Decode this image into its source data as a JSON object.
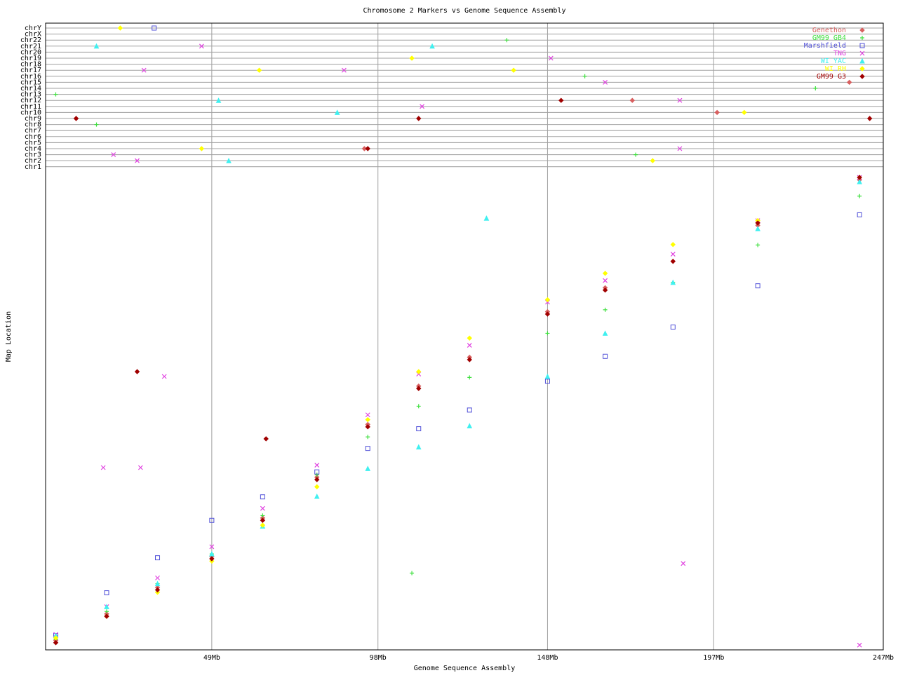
{
  "chart_data": {
    "type": "scatter",
    "title": "Chromosome 2 Markers vs Genome Sequence Assembly",
    "x_label": "Genome Sequence Assembly",
    "y_label": "Map Location",
    "xlim": [
      0,
      247
    ],
    "xticks": [
      {
        "value": 49,
        "label": "49Mb"
      },
      {
        "value": 98,
        "label": "98Mb"
      },
      {
        "value": 148,
        "label": "148Mb"
      },
      {
        "value": 197,
        "label": "197Mb"
      },
      {
        "value": 247,
        "label": "247Mb"
      }
    ],
    "ylim": [
      0,
      100
    ],
    "grid": true,
    "legend": "upper right",
    "chr_rows": [
      "chrY",
      "chrX",
      "chr22",
      "chr21",
      "chr20",
      "chr19",
      "chr18",
      "chr17",
      "chr16",
      "chr15",
      "chr14",
      "chr13",
      "chr12",
      "chr11",
      "chr10",
      "chr9",
      "chr8",
      "chr7",
      "chr6",
      "chr5",
      "chr4",
      "chr3",
      "chr2",
      "chr1"
    ],
    "series": [
      {
        "name": "Genethon",
        "color": "#d86060",
        "marker": "diamond",
        "x": [
          3,
          18,
          33,
          49,
          64,
          80,
          95,
          110,
          125,
          148,
          165,
          185,
          210,
          240
        ],
        "values": [
          2,
          7.5,
          13,
          19.5,
          27.5,
          36,
          47,
          55,
          61,
          70.5,
          75.5,
          81,
          88.5,
          98
        ],
        "other_chr_x": [
          9,
          94,
          173,
          198,
          237
        ],
        "other_chr": [
          "chr9",
          "chr4",
          "chr12",
          "chr10",
          "chr15"
        ]
      },
      {
        "name": "GM99 GB4",
        "color": "#40e040",
        "marker": "plus",
        "x": [
          3,
          18,
          33,
          49,
          64,
          80,
          95,
          110,
          125,
          148,
          165,
          185,
          210,
          240,
          108
        ],
        "values": [
          2.2,
          8,
          13.8,
          20,
          28,
          36.5,
          44.4,
          50.8,
          56.8,
          66,
          70.9,
          76.6,
          84.4,
          94.6,
          16
        ],
        "other_chr_x": [
          3,
          15,
          136,
          159,
          174,
          227
        ],
        "other_chr": [
          "chr13",
          "chr8",
          "chr22",
          "chr16",
          "chr3",
          "chr14"
        ]
      },
      {
        "name": "Marshfield",
        "color": "#5050d8",
        "marker": "square",
        "x": [
          3,
          18,
          33,
          49,
          64,
          80,
          95,
          110,
          125,
          148,
          165,
          185,
          210,
          240
        ],
        "values": [
          3,
          11.9,
          19.2,
          27,
          31.9,
          37.1,
          42,
          46.1,
          50,
          56,
          61.2,
          67.3,
          75.9,
          90.7
        ],
        "other_chr_x": [
          32
        ],
        "other_chr": [
          "chrY"
        ]
      },
      {
        "name": "TNG",
        "color": "#e040e0",
        "marker": "x",
        "x": [
          3,
          18,
          33,
          49,
          64,
          80,
          95,
          110,
          125,
          148,
          165,
          185,
          210,
          240,
          35,
          28,
          188,
          240,
          17
        ],
        "values": [
          3.2,
          9,
          15,
          21.5,
          29.5,
          38.5,
          49,
          57.5,
          63.5,
          72.5,
          77,
          82.5,
          89.5,
          98.5,
          57,
          38,
          18,
          1,
          38
        ],
        "other_chr_x": [
          20,
          27,
          29,
          46,
          88,
          111,
          149,
          165,
          187,
          187
        ],
        "other_chr": [
          "chr3",
          "chr2",
          "chr17",
          "chr21",
          "chr17",
          "chr11",
          "chr19",
          "chr15",
          "chr12",
          "chr4"
        ]
      },
      {
        "name": "WI YAC",
        "color": "#40f0f0",
        "marker": "triangle",
        "x": [
          3,
          18,
          33,
          49,
          64,
          80,
          95,
          110,
          125,
          148,
          165,
          185,
          210,
          240,
          130
        ],
        "values": [
          3,
          9,
          13.8,
          20,
          25.8,
          32,
          37.8,
          42.3,
          46.7,
          57,
          66,
          76.6,
          87.8,
          97.6,
          90
        ],
        "other_chr_x": [
          15,
          51,
          54,
          86,
          114
        ],
        "other_chr": [
          "chr21",
          "chr12",
          "chr2",
          "chr10",
          "chr21"
        ]
      },
      {
        "name": "WI RH",
        "color": "#ffff00",
        "marker": "diamond",
        "x": [
          3,
          18,
          33,
          49,
          64,
          80,
          95,
          110,
          125,
          148,
          165,
          185,
          210,
          240
        ],
        "values": [
          2.5,
          7,
          12,
          18.5,
          26,
          34,
          48,
          58,
          65,
          73,
          78.5,
          84.5,
          89.5,
          98.5
        ],
        "other_chr_x": [
          22,
          46,
          63,
          108,
          138,
          179,
          206
        ],
        "other_chr": [
          "chrY",
          "chr4",
          "chr17",
          "chr19",
          "chr17",
          "chr2",
          "chr10"
        ]
      },
      {
        "name": "GM99 G3",
        "color": "#a00000",
        "marker": "diamond",
        "x": [
          3,
          18,
          33,
          49,
          64,
          80,
          95,
          110,
          125,
          148,
          165,
          185,
          210,
          240,
          65,
          27
        ],
        "values": [
          1.5,
          7,
          12.5,
          19,
          27,
          35.5,
          46.5,
          54.5,
          60.5,
          70,
          75,
          81,
          89,
          98.5,
          44,
          58
        ],
        "other_chr_x": [
          9,
          95,
          110,
          152,
          243
        ],
        "other_chr": [
          "chr9",
          "chr4",
          "chr9",
          "chr12",
          "chr9"
        ]
      }
    ]
  }
}
